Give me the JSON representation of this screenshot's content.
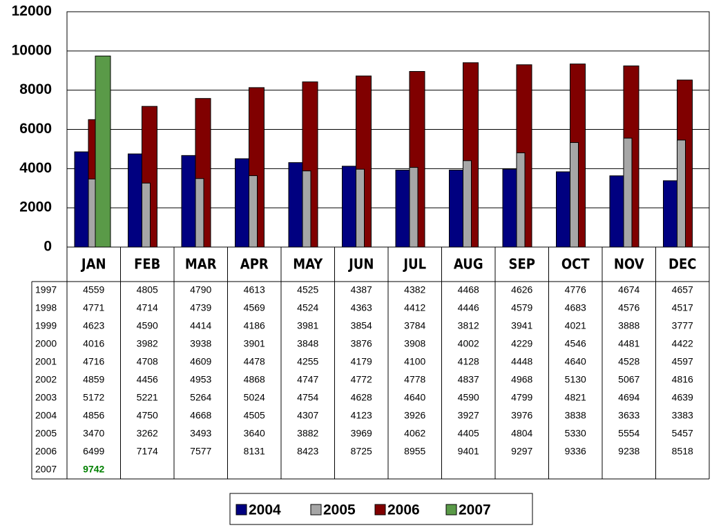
{
  "chart_data": {
    "type": "bar",
    "categories": [
      "JAN",
      "FEB",
      "MAR",
      "APR",
      "MAY",
      "JUN",
      "JUL",
      "AUG",
      "SEP",
      "OCT",
      "NOV",
      "DEC"
    ],
    "ylim": [
      0,
      12000
    ],
    "yticks": [
      0,
      2000,
      4000,
      6000,
      8000,
      10000,
      12000
    ],
    "grid": true,
    "table_rows": [
      {
        "name": "1997",
        "values": [
          4559,
          4805,
          4790,
          4613,
          4525,
          4387,
          4382,
          4468,
          4626,
          4776,
          4674,
          4657
        ]
      },
      {
        "name": "1998",
        "values": [
          4771,
          4714,
          4739,
          4569,
          4524,
          4363,
          4412,
          4446,
          4579,
          4683,
          4576,
          4517
        ]
      },
      {
        "name": "1999",
        "values": [
          4623,
          4590,
          4414,
          4186,
          3981,
          3854,
          3784,
          3812,
          3941,
          4021,
          3888,
          3777
        ]
      },
      {
        "name": "2000",
        "values": [
          4016,
          3982,
          3938,
          3901,
          3848,
          3876,
          3908,
          4002,
          4229,
          4546,
          4481,
          4422
        ]
      },
      {
        "name": "2001",
        "values": [
          4716,
          4708,
          4609,
          4478,
          4255,
          4179,
          4100,
          4128,
          4448,
          4640,
          4528,
          4597
        ]
      },
      {
        "name": "2002",
        "values": [
          4859,
          4456,
          4953,
          4868,
          4747,
          4772,
          4778,
          4837,
          4968,
          5130,
          5067,
          4816
        ]
      },
      {
        "name": "2003",
        "values": [
          5172,
          5221,
          5264,
          5024,
          4754,
          4628,
          4640,
          4590,
          4799,
          4821,
          4694,
          4639
        ]
      }
    ],
    "series": [
      {
        "name": "2004",
        "color": "#000080",
        "values": [
          4856,
          4750,
          4668,
          4505,
          4307,
          4123,
          3926,
          3927,
          3976,
          3838,
          3633,
          3383
        ]
      },
      {
        "name": "2005",
        "color": "#a6a6a6",
        "values": [
          3470,
          3262,
          3493,
          3640,
          3882,
          3969,
          4062,
          4405,
          4804,
          5330,
          5554,
          5457
        ]
      },
      {
        "name": "2006",
        "color": "#800000",
        "values": [
          6499,
          7174,
          7577,
          8131,
          8423,
          8725,
          8955,
          9401,
          9297,
          9336,
          9238,
          8518
        ]
      },
      {
        "name": "2007",
        "color": "#5a9a48",
        "values": [
          9742,
          null,
          null,
          null,
          null,
          null,
          null,
          null,
          null,
          null,
          null,
          null
        ]
      }
    ]
  }
}
